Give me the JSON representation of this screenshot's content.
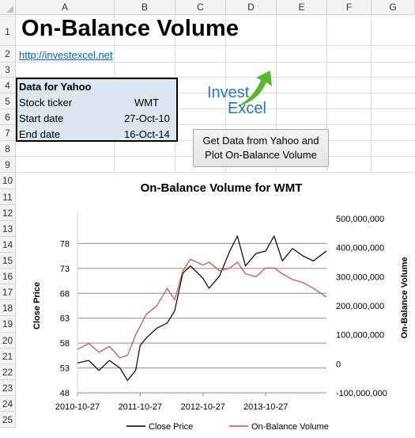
{
  "columns": [
    "A",
    "B",
    "C",
    "D",
    "E",
    "F",
    "G"
  ],
  "rows": [
    "1",
    "2",
    "3",
    "4",
    "5",
    "6",
    "7",
    "8",
    "9",
    "10",
    "11",
    "12",
    "13",
    "14",
    "15",
    "16",
    "17",
    "18",
    "19",
    "20",
    "21",
    "22",
    "23",
    "24",
    "25"
  ],
  "sheet": {
    "title": "On-Balance Volume",
    "link": "http://investexcel.net",
    "data_box": {
      "header": "Data for Yahoo",
      "ticker_label": "Stock ticker",
      "ticker_value": "WMT",
      "start_label": "Start date",
      "start_value": "27-Oct-10",
      "end_label": "End date",
      "end_value": "16-Oct-14"
    },
    "logo": {
      "word1": "Invest",
      "word2": "Excel",
      "arrow_color": "#5ab52f",
      "text_color": "#2e75b6"
    },
    "button_label": "Get Data from Yahoo and Plot On-Balance Volume"
  },
  "chart_data": {
    "type": "line",
    "title": "On-Balance Volume for WMT",
    "ylabel": "Close Price",
    "y2label": "On-Balance Volume",
    "ylim": [
      48,
      83
    ],
    "y2lim": [
      -100000000,
      500000000
    ],
    "yticks": [
      "48",
      "53",
      "58",
      "63",
      "68",
      "73",
      "78"
    ],
    "y2ticks": [
      "-100,000,000",
      "0",
      "100,000,000",
      "200,000,000",
      "300,000,000",
      "400,000,000",
      "500,000,000"
    ],
    "xticks": [
      "2010-10-27",
      "2011-10-27",
      "2012-10-27",
      "2013-10-27"
    ],
    "x": [
      "2010-10-27",
      "2011-01-01",
      "2011-03-01",
      "2011-05-01",
      "2011-07-01",
      "2011-08-15",
      "2011-10-01",
      "2011-10-27",
      "2011-12-01",
      "2012-02-01",
      "2012-04-01",
      "2012-05-15",
      "2012-07-01",
      "2012-08-15",
      "2012-10-27",
      "2012-12-01",
      "2013-02-01",
      "2013-04-01",
      "2013-05-15",
      "2013-07-01",
      "2013-09-01",
      "2013-10-27",
      "2013-12-15",
      "2014-02-01",
      "2014-04-01",
      "2014-06-01",
      "2014-08-01",
      "2014-10-16"
    ],
    "series": [
      {
        "name": "Close Price",
        "color": "#000000",
        "axis": "left",
        "values": [
          54.0,
          54.5,
          52.5,
          54.5,
          53.0,
          50.5,
          52.5,
          57.5,
          59.0,
          61.0,
          62.0,
          64.5,
          72.0,
          73.5,
          71.0,
          69.0,
          71.5,
          76.5,
          79.5,
          73.5,
          76.0,
          76.5,
          79.5,
          74.5,
          77.0,
          75.5,
          74.5,
          76.5
        ]
      },
      {
        "name": "On-Balance Volume",
        "color": "#c0504d",
        "axis": "right",
        "values": [
          50000000,
          70000000,
          40000000,
          60000000,
          20000000,
          30000000,
          100000000,
          130000000,
          170000000,
          200000000,
          260000000,
          220000000,
          320000000,
          360000000,
          340000000,
          350000000,
          320000000,
          330000000,
          350000000,
          310000000,
          300000000,
          330000000,
          330000000,
          310000000,
          290000000,
          280000000,
          260000000,
          230000000
        ]
      }
    ],
    "legend_position": "bottom"
  }
}
